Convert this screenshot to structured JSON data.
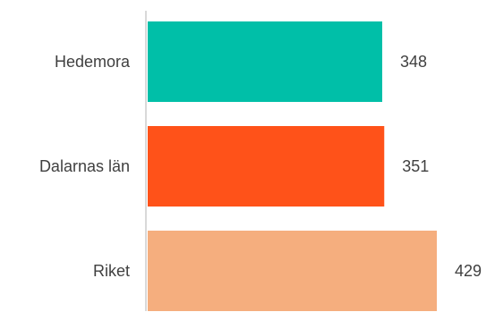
{
  "chart_data": {
    "type": "bar",
    "orientation": "horizontal",
    "categories": [
      "Hedemora",
      "Dalarnas län",
      "Riket"
    ],
    "values": [
      348,
      351,
      429
    ],
    "colors": [
      "#00BFA8",
      "#FF5219",
      "#F5AE7E"
    ],
    "axis_color": "#d9d9d9",
    "label_color": "#404040",
    "xlim": [
      0,
      429
    ],
    "grid": false,
    "legend": false
  }
}
